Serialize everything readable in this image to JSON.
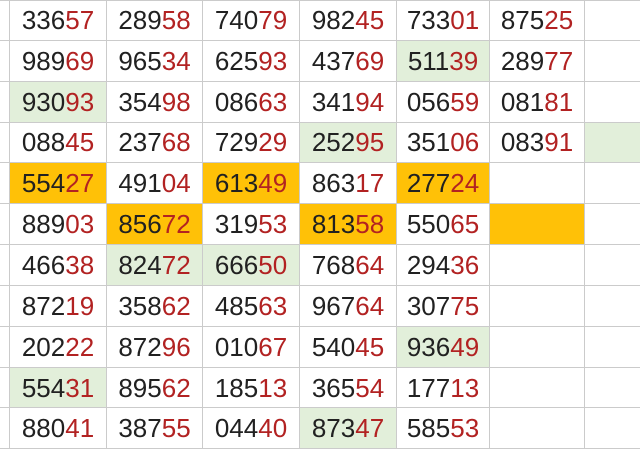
{
  "table": {
    "description_colors": {
      "digit_dark": "#212121",
      "digit_red": "#b22222",
      "highlight_green": "#e2efda",
      "highlight_orange": "#ffc107",
      "grid_line": "#cbcbcb",
      "background": "#ffffff"
    },
    "digit_rule": {
      "dark_digit_count": 3,
      "red_digit_count": 2
    },
    "rows": [
      {
        "cells": [
          {
            "dark": "336",
            "red": "57",
            "highlight": null
          },
          {
            "dark": "289",
            "red": "58",
            "highlight": null
          },
          {
            "dark": "740",
            "red": "79",
            "highlight": null
          },
          {
            "dark": "982",
            "red": "45",
            "highlight": null
          },
          {
            "dark": "733",
            "red": "01",
            "highlight": null
          },
          {
            "dark": "875",
            "red": "25",
            "highlight": null
          },
          {
            "dark": "",
            "red": "",
            "highlight": null
          }
        ]
      },
      {
        "cells": [
          {
            "dark": "989",
            "red": "69",
            "highlight": null
          },
          {
            "dark": "965",
            "red": "34",
            "highlight": null
          },
          {
            "dark": "625",
            "red": "93",
            "highlight": null
          },
          {
            "dark": "437",
            "red": "69",
            "highlight": null
          },
          {
            "dark": "511",
            "red": "39",
            "highlight": "green"
          },
          {
            "dark": "289",
            "red": "77",
            "highlight": null
          },
          {
            "dark": "",
            "red": "",
            "highlight": null
          }
        ]
      },
      {
        "cells": [
          {
            "dark": "930",
            "red": "93",
            "highlight": "green"
          },
          {
            "dark": "354",
            "red": "98",
            "highlight": null
          },
          {
            "dark": "086",
            "red": "63",
            "highlight": null
          },
          {
            "dark": "341",
            "red": "94",
            "highlight": null
          },
          {
            "dark": "056",
            "red": "59",
            "highlight": null
          },
          {
            "dark": "081",
            "red": "81",
            "highlight": null
          },
          {
            "dark": "",
            "red": "",
            "highlight": null
          }
        ]
      },
      {
        "cells": [
          {
            "dark": "088",
            "red": "45",
            "highlight": null
          },
          {
            "dark": "237",
            "red": "68",
            "highlight": null
          },
          {
            "dark": "729",
            "red": "29",
            "highlight": null
          },
          {
            "dark": "252",
            "red": "95",
            "highlight": "green"
          },
          {
            "dark": "351",
            "red": "06",
            "highlight": null
          },
          {
            "dark": "083",
            "red": "91",
            "highlight": null
          },
          {
            "dark": "",
            "red": "",
            "highlight": "green"
          }
        ]
      },
      {
        "cells": [
          {
            "dark": "554",
            "red": "27",
            "highlight": "orange"
          },
          {
            "dark": "491",
            "red": "04",
            "highlight": null
          },
          {
            "dark": "613",
            "red": "49",
            "highlight": "orange"
          },
          {
            "dark": "863",
            "red": "17",
            "highlight": null
          },
          {
            "dark": "277",
            "red": "24",
            "highlight": "orange"
          },
          {
            "dark": "",
            "red": "",
            "highlight": null
          },
          {
            "dark": "",
            "red": "",
            "highlight": null
          }
        ]
      },
      {
        "cells": [
          {
            "dark": "889",
            "red": "03",
            "highlight": null
          },
          {
            "dark": "856",
            "red": "72",
            "highlight": "orange"
          },
          {
            "dark": "319",
            "red": "53",
            "highlight": null
          },
          {
            "dark": "813",
            "red": "58",
            "highlight": "orange"
          },
          {
            "dark": "550",
            "red": "65",
            "highlight": null
          },
          {
            "dark": "",
            "red": "",
            "highlight": "orange"
          },
          {
            "dark": "",
            "red": "",
            "highlight": null
          }
        ]
      },
      {
        "cells": [
          {
            "dark": "466",
            "red": "38",
            "highlight": null
          },
          {
            "dark": "824",
            "red": "72",
            "highlight": "green"
          },
          {
            "dark": "666",
            "red": "50",
            "highlight": "green"
          },
          {
            "dark": "768",
            "red": "64",
            "highlight": null
          },
          {
            "dark": "294",
            "red": "36",
            "highlight": null
          },
          {
            "dark": "",
            "red": "",
            "highlight": null
          },
          {
            "dark": "",
            "red": "",
            "highlight": null
          }
        ]
      },
      {
        "cells": [
          {
            "dark": "872",
            "red": "19",
            "highlight": null
          },
          {
            "dark": "358",
            "red": "62",
            "highlight": null
          },
          {
            "dark": "485",
            "red": "63",
            "highlight": null
          },
          {
            "dark": "967",
            "red": "64",
            "highlight": null
          },
          {
            "dark": "307",
            "red": "75",
            "highlight": null
          },
          {
            "dark": "",
            "red": "",
            "highlight": null
          },
          {
            "dark": "",
            "red": "",
            "highlight": null
          }
        ]
      },
      {
        "cells": [
          {
            "dark": "202",
            "red": "22",
            "highlight": null
          },
          {
            "dark": "872",
            "red": "96",
            "highlight": null
          },
          {
            "dark": "010",
            "red": "67",
            "highlight": null
          },
          {
            "dark": "540",
            "red": "45",
            "highlight": null
          },
          {
            "dark": "936",
            "red": "49",
            "highlight": "green"
          },
          {
            "dark": "",
            "red": "",
            "highlight": null
          },
          {
            "dark": "",
            "red": "",
            "highlight": null
          }
        ]
      },
      {
        "cells": [
          {
            "dark": "554",
            "red": "31",
            "highlight": "green"
          },
          {
            "dark": "895",
            "red": "62",
            "highlight": null
          },
          {
            "dark": "185",
            "red": "13",
            "highlight": null
          },
          {
            "dark": "365",
            "red": "54",
            "highlight": null
          },
          {
            "dark": "177",
            "red": "13",
            "highlight": null
          },
          {
            "dark": "",
            "red": "",
            "highlight": null
          },
          {
            "dark": "",
            "red": "",
            "highlight": null
          }
        ]
      },
      {
        "cells": [
          {
            "dark": "880",
            "red": "41",
            "highlight": null
          },
          {
            "dark": "387",
            "red": "55",
            "highlight": null
          },
          {
            "dark": "044",
            "red": "40",
            "highlight": null
          },
          {
            "dark": "873",
            "red": "47",
            "highlight": "green"
          },
          {
            "dark": "585",
            "red": "53",
            "highlight": null
          },
          {
            "dark": "",
            "red": "",
            "highlight": null
          },
          {
            "dark": "",
            "red": "",
            "highlight": null
          }
        ]
      }
    ]
  }
}
